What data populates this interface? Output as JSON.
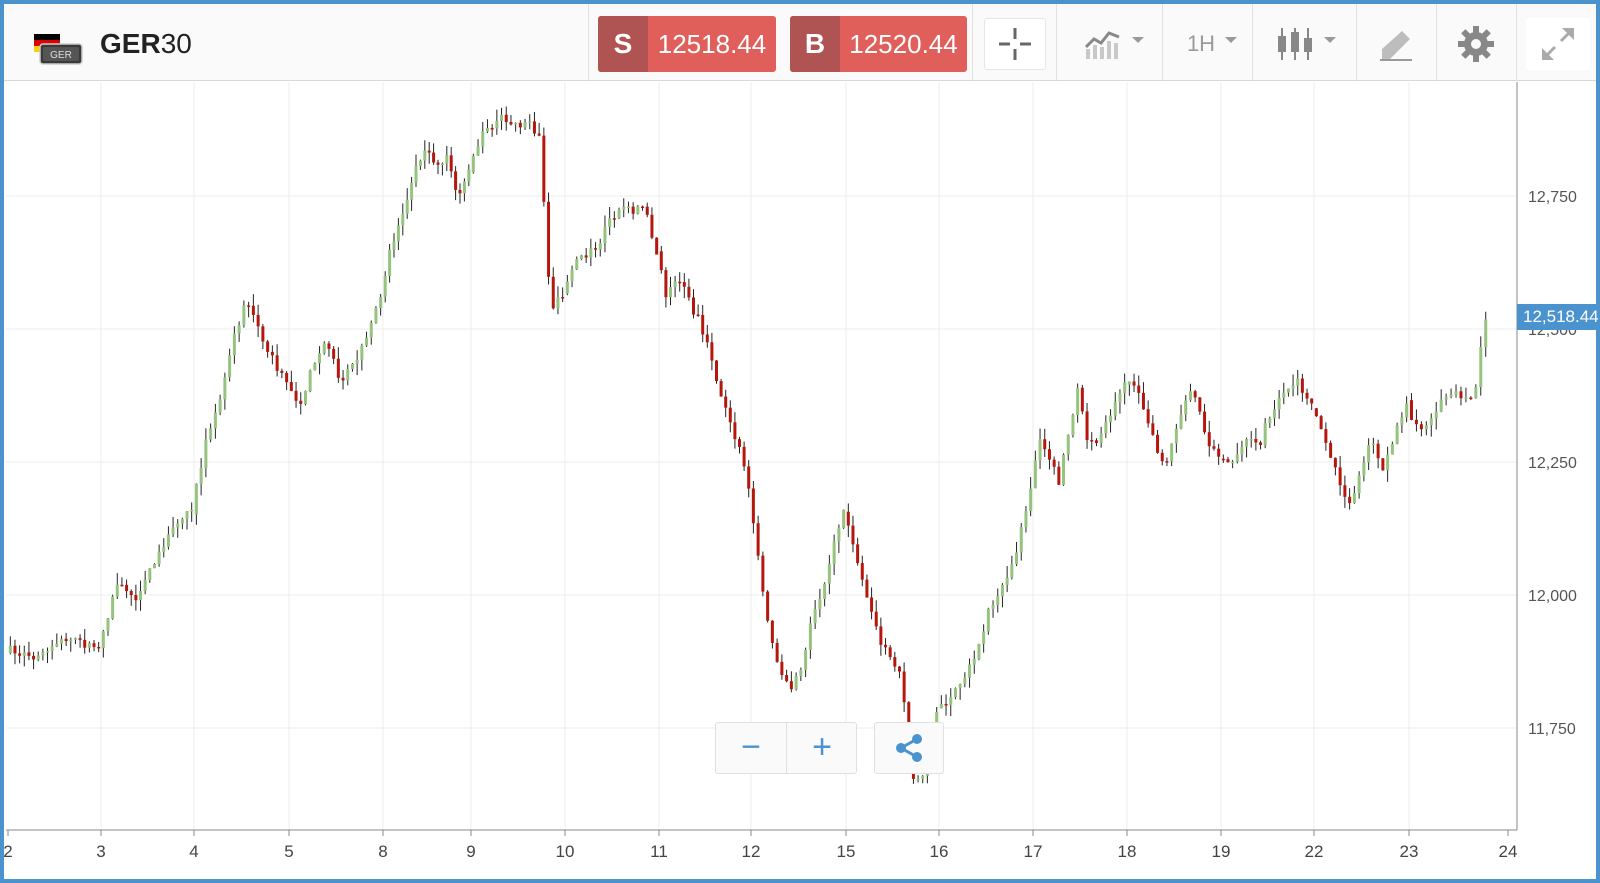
{
  "instrument": {
    "symbol_bold": "GER",
    "symbol_rest": "30",
    "flag_text": "GER"
  },
  "sell": {
    "letter": "S",
    "price": "12518.44"
  },
  "buy": {
    "letter": "B",
    "price": "12520.44"
  },
  "toolbar": {
    "timeframe": "1H",
    "icons": [
      "crosshair-icon",
      "indicators-icon",
      "candlestick-icon",
      "draw-icon",
      "gear-icon",
      "fullscreen-icon"
    ]
  },
  "controls": {
    "zoom_out": "−",
    "zoom_in": "+",
    "share_icon": "share-icon"
  },
  "colors": {
    "up": "#94c47d",
    "down": "#b5170d",
    "wick": "#222222",
    "accent": "#4b93cf",
    "sell_bg": "#e15f5b",
    "letter_bg": "#b05453"
  },
  "chart_data": {
    "type": "candlestick",
    "title": "",
    "xlabel": "",
    "ylabel": "",
    "y_ticks": [
      "12,750",
      "12,500",
      "12,250",
      "12,000",
      "11,750"
    ],
    "x_ticks": [
      "2",
      "3",
      "4",
      "5",
      "8",
      "9",
      "10",
      "11",
      "12",
      "15",
      "16",
      "17",
      "18",
      "19",
      "22",
      "23",
      "24"
    ],
    "ylim": [
      11590,
      12950
    ],
    "grid": true,
    "last_price_label": "12,518.44",
    "series": [
      {
        "day": "2",
        "path": [
          11900,
          11880,
          11920,
          11900
        ]
      },
      {
        "day": "3",
        "path": [
          11900,
          12020,
          11990,
          12060,
          12130,
          12160
        ]
      },
      {
        "day": "4",
        "path": [
          12160,
          12280,
          12360,
          12480,
          12550,
          12500,
          12440,
          12400
        ]
      },
      {
        "day": "5",
        "path": [
          12400,
          12350,
          12440,
          12480,
          12400,
          12440,
          12480,
          12560
        ]
      },
      {
        "day": "8",
        "path": [
          12560,
          12660,
          12720,
          12800,
          12840,
          12800,
          12820,
          12740,
          12800
        ]
      },
      {
        "day": "9",
        "path": [
          12800,
          12860,
          12880,
          12900,
          12880,
          12900,
          12860,
          12540,
          12560
        ]
      },
      {
        "day": "10",
        "path": [
          12560,
          12620,
          12640,
          12660,
          12700,
          12740,
          12710,
          12740,
          12640
        ]
      },
      {
        "day": "11",
        "path": [
          12640,
          12560,
          12600,
          12560,
          12520,
          12470,
          12400,
          12330,
          12280,
          12200
        ]
      },
      {
        "day": "12",
        "path": [
          12200,
          12060,
          11920,
          11860,
          11820,
          11860,
          11960,
          12000,
          12100,
          12160
        ]
      },
      {
        "day": "15",
        "path": [
          12160,
          12070,
          12000,
          11920,
          11880,
          11840,
          11650,
          11660,
          11780
        ]
      },
      {
        "day": "16",
        "path": [
          11780,
          11800,
          11840,
          11900,
          11980,
          12020,
          12090,
          12200
        ]
      },
      {
        "day": "17",
        "path": [
          12200,
          12300,
          12260,
          12210,
          12300,
          12390,
          12300,
          12280,
          12330,
          12360,
          12400
        ]
      },
      {
        "day": "18",
        "path": [
          12400,
          12380,
          12300,
          12240,
          12320,
          12400,
          12300,
          12260
        ]
      },
      {
        "day": "19",
        "path": [
          12260,
          12250,
          12300,
          12280,
          12350,
          12380,
          12400,
          12360
        ]
      },
      {
        "day": "22",
        "path": [
          12360,
          12300,
          12240,
          12170,
          12220,
          12290,
          12230,
          12300,
          12360
        ]
      },
      {
        "day": "23",
        "path": [
          12360,
          12300,
          12340,
          12380,
          12380,
          12360,
          12518
        ]
      }
    ]
  }
}
